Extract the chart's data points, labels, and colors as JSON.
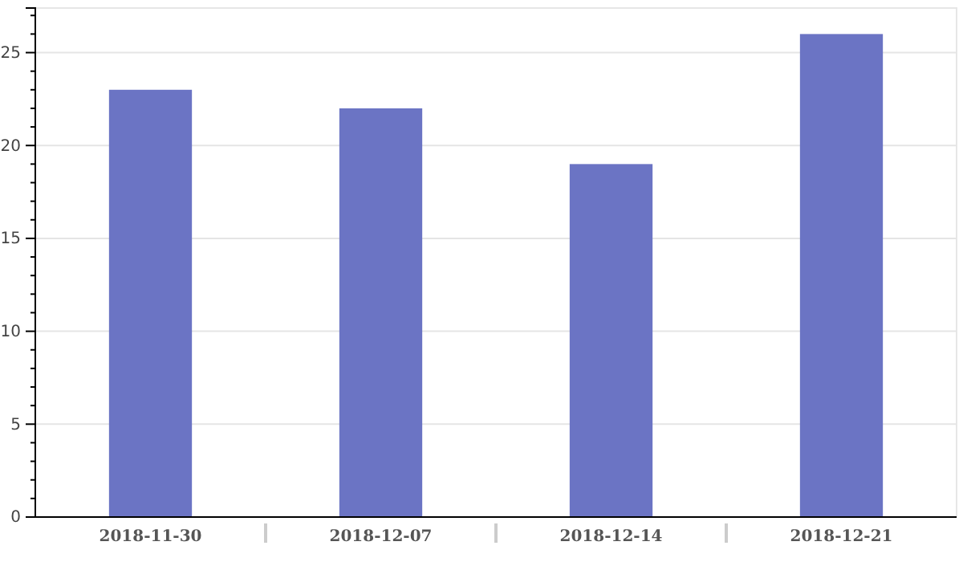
{
  "chart_data": {
    "type": "bar",
    "categories": [
      "2018-11-30",
      "2018-12-07",
      "2018-12-14",
      "2018-12-21"
    ],
    "values": [
      23,
      22,
      19,
      26
    ],
    "color": "#6b74c4",
    "ylim": [
      0,
      27.4
    ],
    "yticks": [
      0,
      {
        "value": 1,
        "label": null
      },
      {
        "value": 2,
        "label": null
      },
      {
        "value": 3,
        "label": null
      },
      {
        "value": 4,
        "label": null
      },
      5,
      {
        "value": 6,
        "label": null
      },
      {
        "value": 7,
        "label": null
      },
      {
        "value": 8,
        "label": null
      },
      {
        "value": 9,
        "label": null
      },
      10,
      {
        "value": 11,
        "label": null
      },
      {
        "value": 12,
        "label": null
      },
      {
        "value": 13,
        "label": null
      },
      {
        "value": 14,
        "label": null
      },
      15,
      {
        "value": 16,
        "label": null
      },
      {
        "value": 17,
        "label": null
      },
      {
        "value": 18,
        "label": null
      },
      {
        "value": 19,
        "label": null
      },
      20,
      {
        "value": 21,
        "label": null
      },
      {
        "value": 22,
        "label": null
      },
      {
        "value": 23,
        "label": null
      },
      {
        "value": 24,
        "label": null
      },
      25,
      {
        "value": 26,
        "label": null
      },
      {
        "value": 27,
        "label": null
      }
    ],
    "grid": "y"
  }
}
